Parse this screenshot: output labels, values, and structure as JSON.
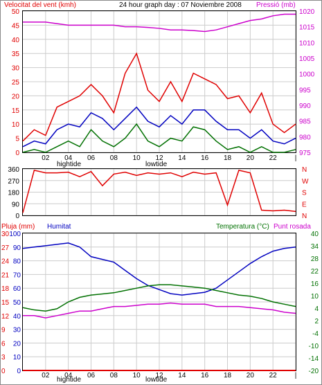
{
  "colors": {
    "wind": "#e00000",
    "wind_avg": "#0000c0",
    "wind_min": "#007000",
    "pressure": "#cc00cc",
    "humidity": "#0000c0",
    "temperature": "#007000",
    "dewpoint": "#cc00cc",
    "rain": "#e00000",
    "direction": "#e00000",
    "frame": "#000000",
    "grid": "#cccccc"
  },
  "top_header": {
    "left": "Velocitat del vent (kmh)",
    "center": "24 hour graph day : 07 Noviembre 2008",
    "right": "Pressió (mb)"
  },
  "bottom_header": {
    "rain": "Pluja (mm)",
    "humidity": "Humitat",
    "temperature": "Temperatura (°C)",
    "dewpoint": "Punt rosada"
  },
  "x_ticks": [
    "02",
    "04",
    "06",
    "08",
    "10",
    "12",
    "14",
    "16",
    "18",
    "20",
    "22",
    "|"
  ],
  "tide_labels": {
    "high": "hightide",
    "low": "lowtide"
  },
  "chart_data": [
    {
      "type": "line",
      "title": "24 hour graph day : 07 Noviembre 2008",
      "ylabel": "Velocitat del vent (kmh)",
      "y2label": "Pressió (mb)",
      "ylim": [
        0,
        50
      ],
      "y2lim": [
        975,
        1020
      ],
      "y_ticks": [
        "0",
        "5",
        "10",
        "15",
        "20",
        "25",
        "30",
        "35",
        "40",
        "45",
        "50"
      ],
      "y2_ticks": [
        "975",
        "980",
        "985",
        "990",
        "995",
        "1000",
        "1005",
        "1010",
        "1015",
        "1020"
      ],
      "x": [
        0,
        1,
        2,
        3,
        4,
        5,
        6,
        7,
        8,
        9,
        10,
        11,
        12,
        13,
        14,
        15,
        16,
        17,
        18,
        19,
        20,
        21,
        22,
        23,
        24
      ],
      "series": [
        {
          "key": "wind_max",
          "values": [
            4,
            8,
            6,
            16,
            18,
            20,
            24,
            20,
            14,
            28,
            35,
            22,
            18,
            25,
            18,
            28,
            26,
            24,
            19,
            20,
            14,
            21,
            10,
            7,
            10
          ]
        },
        {
          "key": "wind_avg",
          "values": [
            2,
            4,
            3,
            8,
            10,
            9,
            14,
            12,
            8,
            12,
            16,
            11,
            9,
            13,
            10,
            15,
            15,
            11,
            8,
            8,
            5,
            8,
            4,
            3,
            5
          ]
        },
        {
          "key": "wind_min",
          "values": [
            0,
            1,
            0,
            2,
            4,
            2,
            8,
            4,
            2,
            5,
            10,
            4,
            2,
            5,
            4,
            9,
            8,
            4,
            1,
            2,
            0,
            2,
            0,
            0,
            1
          ]
        },
        {
          "key": "pressure",
          "values": [
            1016.5,
            1016.5,
            1016.5,
            1016,
            1015.5,
            1015.5,
            1015.5,
            1015.5,
            1015.5,
            1015,
            1015,
            1014.8,
            1014.5,
            1014,
            1014,
            1013.8,
            1013.5,
            1014,
            1015,
            1016,
            1017,
            1017.5,
            1018.5,
            1019,
            1019
          ]
        }
      ]
    },
    {
      "type": "line",
      "ylabel": "N W S E N",
      "ylim": [
        0,
        360
      ],
      "y_ticks": [
        "0",
        "90",
        "180",
        "270",
        "360"
      ],
      "y2_ticks": [
        "N",
        "E",
        "S",
        "W",
        "N"
      ],
      "x": [
        0,
        1,
        2,
        3,
        4,
        5,
        6,
        7,
        8,
        9,
        10,
        11,
        12,
        13,
        14,
        15,
        16,
        17,
        18,
        19,
        20,
        21,
        22,
        23,
        24
      ],
      "series": [
        {
          "key": "wind_direction",
          "values": [
            20,
            350,
            330,
            330,
            335,
            300,
            340,
            230,
            320,
            335,
            310,
            330,
            320,
            330,
            300,
            335,
            320,
            330,
            80,
            350,
            330,
            40,
            35,
            40,
            30
          ]
        }
      ]
    },
    {
      "type": "line",
      "ylabel": "Pluja (mm)",
      "y2label": "Temperatura (°C)",
      "ylim": [
        0,
        30
      ],
      "y_ticks_rain": [
        "0",
        "3",
        "6",
        "9",
        "12",
        "15",
        "18",
        "21",
        "24",
        "27",
        "30"
      ],
      "y_ticks_humidity": [
        "0",
        "10",
        "20",
        "30",
        "40",
        "50",
        "60",
        "70",
        "80",
        "90",
        "100"
      ],
      "y2lim": [
        -20,
        40
      ],
      "y2_ticks": [
        "-20",
        "-14",
        "-10",
        "-4",
        "2",
        "4",
        "10",
        "16",
        "22",
        "28",
        "34",
        "40"
      ],
      "x": [
        0,
        1,
        2,
        3,
        4,
        5,
        6,
        7,
        8,
        9,
        10,
        11,
        12,
        13,
        14,
        15,
        16,
        17,
        18,
        19,
        20,
        21,
        22,
        23,
        24
      ],
      "series": [
        {
          "key": "humidity",
          "values": [
            89,
            90,
            91,
            92,
            93,
            90,
            83,
            81,
            79,
            73,
            67,
            62,
            59,
            56,
            55,
            56,
            57,
            60,
            66,
            72,
            78,
            83,
            87,
            89,
            90
          ]
        },
        {
          "key": "temperature",
          "values": [
            7.5,
            6.5,
            6,
            7,
            10,
            12,
            13,
            13.5,
            14,
            15,
            16,
            17,
            17.5,
            17.5,
            17,
            16.5,
            16,
            15,
            14,
            13,
            12.5,
            11.5,
            10,
            9,
            8
          ]
        },
        {
          "key": "dewpoint",
          "values": [
            4,
            4,
            3,
            4,
            5,
            6,
            6,
            7,
            8,
            8,
            8.5,
            9,
            9,
            9.5,
            9,
            9,
            9,
            8,
            8,
            8,
            7.5,
            7,
            6.5,
            5.5,
            5
          ]
        },
        {
          "key": "rain",
          "values": [
            0,
            0,
            0,
            0,
            0,
            0,
            0,
            0,
            0,
            0,
            0,
            0,
            0,
            0,
            0,
            0,
            0,
            0,
            0,
            0,
            0,
            0,
            0,
            0,
            0
          ]
        }
      ]
    }
  ]
}
